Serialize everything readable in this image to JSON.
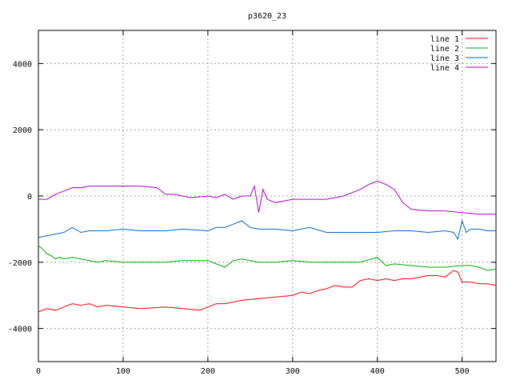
{
  "chart_data": {
    "type": "line",
    "title": "p3620_23",
    "xlabel": "",
    "ylabel": "",
    "xlim": [
      0,
      540
    ],
    "ylim": [
      -5000,
      5000
    ],
    "xticks": [
      0,
      100,
      200,
      300,
      400,
      500
    ],
    "yticks": [
      -4000,
      -2000,
      0,
      2000,
      4000
    ],
    "grid": true,
    "legend_position": "top-right",
    "series": [
      {
        "name": "line 1",
        "color": "#ff0000",
        "x": [
          0,
          10,
          20,
          30,
          40,
          50,
          60,
          70,
          80,
          100,
          120,
          150,
          170,
          190,
          200,
          210,
          220,
          240,
          260,
          280,
          300,
          310,
          320,
          330,
          340,
          350,
          360,
          370,
          380,
          390,
          400,
          410,
          420,
          430,
          440,
          450,
          460,
          470,
          480,
          490,
          495,
          500,
          510,
          520,
          530,
          540
        ],
        "y": [
          -3500,
          -3400,
          -3450,
          -3350,
          -3250,
          -3300,
          -3250,
          -3350,
          -3300,
          -3350,
          -3400,
          -3350,
          -3400,
          -3450,
          -3350,
          -3250,
          -3250,
          -3150,
          -3100,
          -3050,
          -3000,
          -2900,
          -2950,
          -2850,
          -2800,
          -2700,
          -2750,
          -2750,
          -2550,
          -2500,
          -2550,
          -2500,
          -2550,
          -2500,
          -2500,
          -2450,
          -2400,
          -2400,
          -2450,
          -2250,
          -2300,
          -2600,
          -2600,
          -2650,
          -2650,
          -2700
        ]
      },
      {
        "name": "line 2",
        "color": "#00aa00",
        "x": [
          0,
          5,
          10,
          15,
          20,
          25,
          30,
          40,
          50,
          60,
          70,
          80,
          100,
          120,
          150,
          170,
          200,
          210,
          220,
          230,
          240,
          250,
          260,
          280,
          300,
          320,
          340,
          360,
          380,
          400,
          410,
          420,
          440,
          460,
          480,
          500,
          510,
          520,
          530,
          540
        ],
        "y": [
          -1500,
          -1600,
          -1750,
          -1800,
          -1900,
          -1850,
          -1900,
          -1850,
          -1900,
          -1950,
          -2000,
          -1950,
          -2000,
          -2000,
          -2000,
          -1950,
          -1950,
          -2050,
          -2150,
          -1950,
          -1900,
          -1950,
          -2000,
          -2000,
          -1950,
          -2000,
          -2000,
          -2000,
          -2000,
          -1850,
          -2100,
          -2050,
          -2100,
          -2150,
          -2150,
          -2100,
          -2100,
          -2150,
          -2250,
          -2200
        ]
      },
      {
        "name": "line 3",
        "color": "#0066cc",
        "x": [
          0,
          10,
          20,
          30,
          40,
          50,
          60,
          80,
          100,
          120,
          150,
          170,
          200,
          210,
          220,
          230,
          240,
          250,
          260,
          280,
          300,
          320,
          340,
          360,
          380,
          400,
          420,
          440,
          460,
          480,
          490,
          495,
          500,
          505,
          510,
          520,
          530,
          540
        ],
        "y": [
          -1250,
          -1200,
          -1150,
          -1100,
          -950,
          -1100,
          -1050,
          -1050,
          -1000,
          -1050,
          -1050,
          -1000,
          -1050,
          -950,
          -950,
          -850,
          -750,
          -950,
          -1000,
          -1000,
          -1050,
          -950,
          -1100,
          -1100,
          -1100,
          -1100,
          -1050,
          -1050,
          -1100,
          -1050,
          -1100,
          -1300,
          -750,
          -1100,
          -1000,
          -1000,
          -1050,
          -1050
        ]
      },
      {
        "name": "line 4",
        "color": "#aa00cc",
        "x": [
          0,
          10,
          20,
          30,
          40,
          50,
          60,
          80,
          100,
          120,
          140,
          150,
          160,
          170,
          180,
          200,
          210,
          220,
          230,
          240,
          250,
          255,
          260,
          265,
          270,
          280,
          300,
          320,
          340,
          360,
          380,
          390,
          400,
          410,
          420,
          430,
          440,
          460,
          480,
          500,
          520,
          540
        ],
        "y": [
          -100,
          -100,
          50,
          150,
          250,
          250,
          300,
          300,
          300,
          300,
          250,
          50,
          50,
          0,
          -50,
          0,
          -50,
          50,
          -100,
          0,
          0,
          300,
          -500,
          200,
          -100,
          -200,
          -100,
          -100,
          -100,
          0,
          200,
          350,
          450,
          350,
          200,
          -200,
          -400,
          -450,
          -450,
          -500,
          -550,
          -550
        ]
      }
    ]
  }
}
